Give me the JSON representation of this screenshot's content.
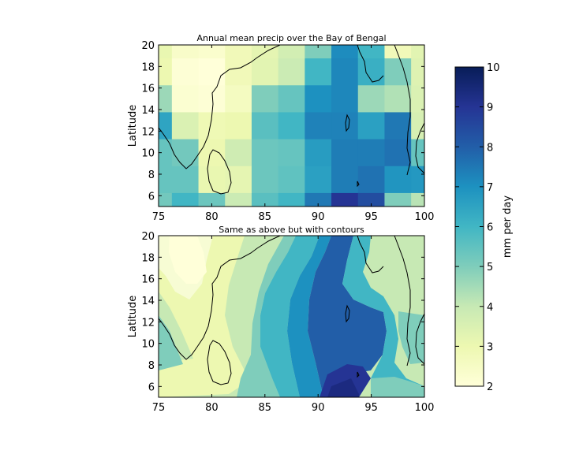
{
  "chart_data": [
    {
      "type": "heatmap",
      "title": "Annual mean precip over the Bay of Bengal",
      "xlabel": "",
      "ylabel": "Latitude",
      "xlim": [
        75,
        100
      ],
      "ylim": [
        5,
        20
      ],
      "x_ticks": [
        "75",
        "80",
        "85",
        "90",
        "95",
        "100"
      ],
      "y_ticks": [
        "6",
        "8",
        "10",
        "12",
        "14",
        "16",
        "18",
        "20"
      ],
      "x_edges": [
        75,
        76.25,
        78.75,
        81.25,
        83.75,
        86.25,
        88.75,
        91.25,
        93.75,
        96.25,
        98.75,
        100
      ],
      "y_edges": [
        5,
        6.25,
        8.75,
        11.25,
        13.75,
        16.25,
        18.75,
        20
      ],
      "rows_north_to_south": [
        [
          3.1,
          2.4,
          2.3,
          2.8,
          3.2,
          3.7,
          5.0,
          7.1,
          6.0,
          2.8,
          3.3
        ],
        [
          3.0,
          2.1,
          2.0,
          2.8,
          3.3,
          3.9,
          6.0,
          7.2,
          6.2,
          5.0,
          3.4
        ],
        [
          4.6,
          2.2,
          2.1,
          2.6,
          5.0,
          5.4,
          7.0,
          7.2,
          4.6,
          4.3,
          3.5
        ],
        [
          6.5,
          3.5,
          2.9,
          3.0,
          5.6,
          6.0,
          7.3,
          7.3,
          6.6,
          7.5,
          3.6
        ],
        [
          5.4,
          5.2,
          3.0,
          3.8,
          5.3,
          5.4,
          6.7,
          7.4,
          7.4,
          7.6,
          5.4
        ],
        [
          5.4,
          5.4,
          3.1,
          3.2,
          5.3,
          5.5,
          6.6,
          7.4,
          7.6,
          6.9,
          6.8
        ],
        [
          5.2,
          6.0,
          5.3,
          3.9,
          5.6,
          6.0,
          7.5,
          9.0,
          8.4,
          5.0,
          4.2
        ]
      ]
    },
    {
      "type": "heatmap",
      "title": "Same as above but with contours",
      "xlabel": "",
      "ylabel": "Latitude",
      "xlim": [
        75,
        100
      ],
      "ylim": [
        5,
        20
      ],
      "x_ticks": [
        "75",
        "80",
        "85",
        "90",
        "95",
        "100"
      ],
      "y_ticks": [
        "6",
        "8",
        "10",
        "12",
        "14",
        "16",
        "18",
        "20"
      ]
    }
  ],
  "colorbar": {
    "label": "mm per day",
    "min": 2,
    "max": 10,
    "ticks": [
      "2",
      "3",
      "4",
      "5",
      "6",
      "7",
      "8",
      "9",
      "10"
    ],
    "colormap": "YlGnBu",
    "stops": [
      "#ffffd9",
      "#edf8b1",
      "#c7e9b4",
      "#7fcdbb",
      "#41b6c4",
      "#1d91c0",
      "#225ea8",
      "#253494",
      "#081d58"
    ]
  }
}
